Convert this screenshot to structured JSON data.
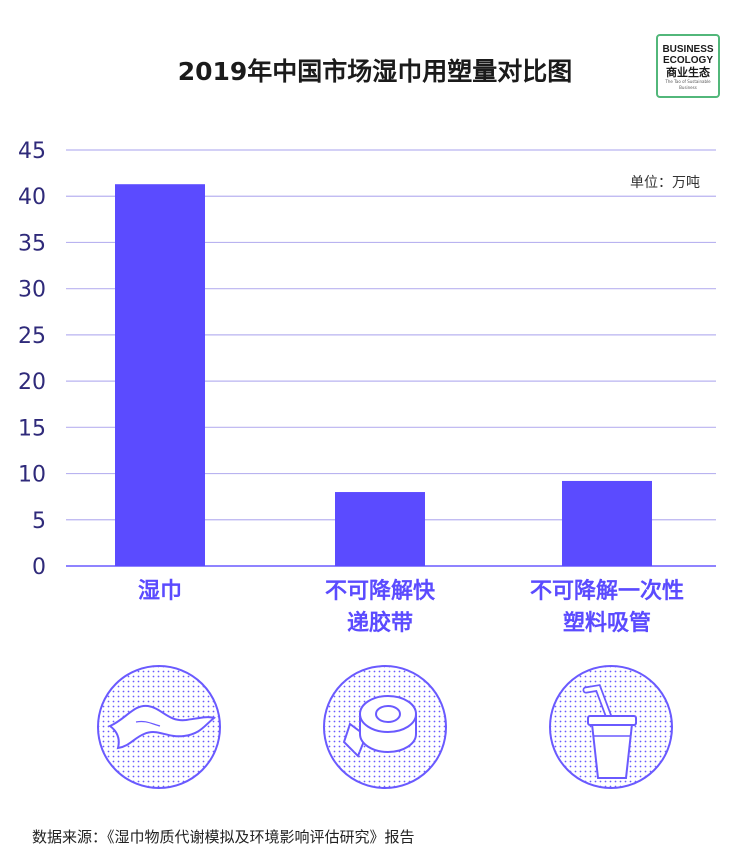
{
  "title": "2019年中国市场湿巾用塑量对比图",
  "logo": {
    "line1": "BUSINESS",
    "line2": "ECOLOGY",
    "line3": "商业生态",
    "line4": "The Tao of Sustainable Business"
  },
  "unit_label": "单位：万吨",
  "chart_data": {
    "type": "bar",
    "title": "2019年中国市场湿巾用塑量对比图",
    "categories": [
      "湿巾",
      "不可降解快递胶带",
      "不可降解一次性塑料吸管"
    ],
    "category_lines": [
      [
        "湿巾"
      ],
      [
        "不可降解快",
        "递胶带"
      ],
      [
        "不可降解一次性",
        "塑料吸管"
      ]
    ],
    "values": [
      41.3,
      8.0,
      9.2
    ],
    "ylim": [
      0,
      45
    ],
    "yticks": [
      0,
      5,
      10,
      15,
      20,
      25,
      30,
      35,
      40,
      45
    ],
    "xlabel": "",
    "ylabel": "",
    "unit": "单位：万吨",
    "grid": true,
    "bar_color": "#5b4bff",
    "grid_color": "#b9b3f0"
  },
  "icons": [
    "wet-wipe-icon",
    "tape-roll-icon",
    "straw-cup-icon"
  ],
  "colors": {
    "accent": "#5b4bff",
    "icon_stroke": "#6a5aff"
  },
  "source": "数据来源：《湿巾物质代谢模拟及环境影响评估研究》报告"
}
